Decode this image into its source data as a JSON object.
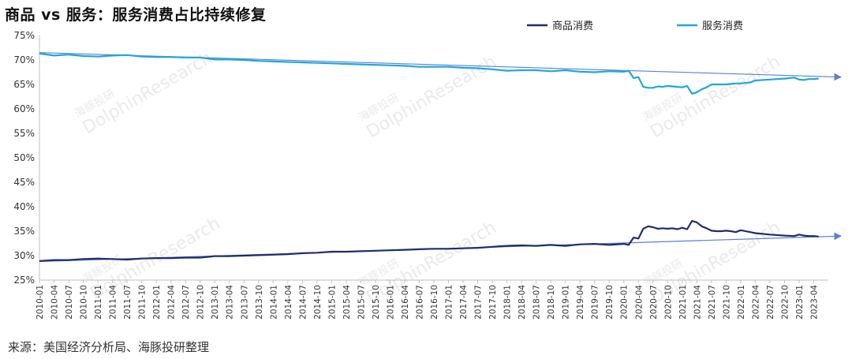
{
  "chart_data": {
    "type": "line",
    "title": "商品 vs 服务：服务消费占比持续修复",
    "source": "来源：美国经济分析局、海豚投研整理",
    "watermark": [
      "海豚投研",
      "DolphinResearch"
    ],
    "ylim": [
      25,
      75
    ],
    "yticks": [
      "25%",
      "30%",
      "35%",
      "40%",
      "45%",
      "50%",
      "55%",
      "60%",
      "65%",
      "70%",
      "75%"
    ],
    "xtick_labels": [
      "2010-01",
      "2010-04",
      "2010-07",
      "2010-10",
      "2011-01",
      "2011-04",
      "2011-07",
      "2011-10",
      "2012-01",
      "2012-04",
      "2012-07",
      "2012-10",
      "2013-01",
      "2013-04",
      "2013-07",
      "2013-10",
      "2014-01",
      "2014-04",
      "2014-07",
      "2014-10",
      "2015-01",
      "2015-04",
      "2015-07",
      "2015-10",
      "2016-01",
      "2016-04",
      "2016-07",
      "2016-10",
      "2017-01",
      "2017-04",
      "2017-07",
      "2017-10",
      "2018-01",
      "2018-04",
      "2018-07",
      "2018-10",
      "2019-01",
      "2019-04",
      "2019-07",
      "2019-10",
      "2020-01",
      "2020-04",
      "2020-07",
      "2020-10",
      "2021-01",
      "2021-04",
      "2021-07",
      "2021-10",
      "2022-01",
      "2022-04",
      "2022-07",
      "2022-10",
      "2023-01",
      "2023-04"
    ],
    "legend_position": "top-right",
    "series": [
      {
        "name": "商品消费",
        "color": "#1f2d6b",
        "points": [
          [
            "2010-01",
            28.9
          ],
          [
            "2010-04",
            29.1
          ],
          [
            "2010-07",
            29.1
          ],
          [
            "2010-10",
            29.3
          ],
          [
            "2011-01",
            29.4
          ],
          [
            "2011-04",
            29.3
          ],
          [
            "2011-07",
            29.2
          ],
          [
            "2011-10",
            29.4
          ],
          [
            "2012-01",
            29.5
          ],
          [
            "2012-04",
            29.5
          ],
          [
            "2012-07",
            29.6
          ],
          [
            "2012-10",
            29.6
          ],
          [
            "2013-01",
            29.9
          ],
          [
            "2013-04",
            29.9
          ],
          [
            "2013-07",
            30.0
          ],
          [
            "2013-10",
            30.1
          ],
          [
            "2014-01",
            30.2
          ],
          [
            "2014-04",
            30.3
          ],
          [
            "2014-07",
            30.5
          ],
          [
            "2014-10",
            30.6
          ],
          [
            "2015-01",
            30.8
          ],
          [
            "2015-04",
            30.8
          ],
          [
            "2015-07",
            30.9
          ],
          [
            "2015-10",
            31.0
          ],
          [
            "2016-01",
            31.1
          ],
          [
            "2016-04",
            31.2
          ],
          [
            "2016-07",
            31.3
          ],
          [
            "2016-10",
            31.4
          ],
          [
            "2017-01",
            31.4
          ],
          [
            "2017-04",
            31.5
          ],
          [
            "2017-07",
            31.6
          ],
          [
            "2017-10",
            31.8
          ],
          [
            "2018-01",
            32.0
          ],
          [
            "2018-04",
            32.1
          ],
          [
            "2018-07",
            32.0
          ],
          [
            "2018-10",
            32.2
          ],
          [
            "2019-01",
            32.0
          ],
          [
            "2019-04",
            32.3
          ],
          [
            "2019-07",
            32.4
          ],
          [
            "2019-10",
            32.2
          ],
          [
            "2020-01",
            32.4
          ],
          [
            "2020-02",
            32.2
          ],
          [
            "2020-03",
            33.7
          ],
          [
            "2020-04",
            33.5
          ],
          [
            "2020-05",
            35.5
          ],
          [
            "2020-06",
            36.0
          ],
          [
            "2020-07",
            35.8
          ],
          [
            "2020-08",
            35.5
          ],
          [
            "2020-09",
            35.6
          ],
          [
            "2020-10",
            35.5
          ],
          [
            "2020-11",
            35.6
          ],
          [
            "2020-12",
            35.4
          ],
          [
            "2021-01",
            35.7
          ],
          [
            "2021-02",
            35.4
          ],
          [
            "2021-03",
            37.1
          ],
          [
            "2021-04",
            36.8
          ],
          [
            "2021-05",
            36.0
          ],
          [
            "2021-06",
            35.6
          ],
          [
            "2021-07",
            35.1
          ],
          [
            "2021-08",
            35.0
          ],
          [
            "2021-09",
            35.0
          ],
          [
            "2021-10",
            35.1
          ],
          [
            "2021-11",
            35.0
          ],
          [
            "2021-12",
            34.8
          ],
          [
            "2022-01",
            35.2
          ],
          [
            "2022-03",
            34.8
          ],
          [
            "2022-04",
            34.6
          ],
          [
            "2022-07",
            34.3
          ],
          [
            "2022-10",
            34.1
          ],
          [
            "2022-12",
            34.0
          ],
          [
            "2023-01",
            34.3
          ],
          [
            "2023-02",
            34.1
          ],
          [
            "2023-03",
            34.0
          ],
          [
            "2023-04",
            34.0
          ],
          [
            "2023-05",
            33.9
          ]
        ]
      },
      {
        "name": "服务消费",
        "color": "#1ea7e1",
        "points": [
          [
            "2010-01",
            71.3
          ],
          [
            "2010-04",
            70.9
          ],
          [
            "2010-07",
            71.1
          ],
          [
            "2010-10",
            70.8
          ],
          [
            "2011-01",
            70.7
          ],
          [
            "2011-04",
            70.9
          ],
          [
            "2011-07",
            71.0
          ],
          [
            "2011-10",
            70.7
          ],
          [
            "2012-01",
            70.6
          ],
          [
            "2012-04",
            70.6
          ],
          [
            "2012-07",
            70.5
          ],
          [
            "2012-10",
            70.5
          ],
          [
            "2013-01",
            70.1
          ],
          [
            "2013-04",
            70.1
          ],
          [
            "2013-07",
            70.0
          ],
          [
            "2013-10",
            69.8
          ],
          [
            "2014-01",
            69.7
          ],
          [
            "2014-04",
            69.6
          ],
          [
            "2014-07",
            69.5
          ],
          [
            "2014-10",
            69.4
          ],
          [
            "2015-01",
            69.3
          ],
          [
            "2015-04",
            69.2
          ],
          [
            "2015-07",
            69.1
          ],
          [
            "2015-10",
            69.0
          ],
          [
            "2016-01",
            68.9
          ],
          [
            "2016-04",
            68.8
          ],
          [
            "2016-07",
            68.6
          ],
          [
            "2016-10",
            68.6
          ],
          [
            "2017-01",
            68.6
          ],
          [
            "2017-04",
            68.4
          ],
          [
            "2017-07",
            68.3
          ],
          [
            "2017-10",
            68.1
          ],
          [
            "2018-01",
            67.8
          ],
          [
            "2018-04",
            67.9
          ],
          [
            "2018-07",
            67.9
          ],
          [
            "2018-10",
            67.7
          ],
          [
            "2019-01",
            67.9
          ],
          [
            "2019-04",
            67.6
          ],
          [
            "2019-07",
            67.5
          ],
          [
            "2019-10",
            67.7
          ],
          [
            "2020-01",
            67.6
          ],
          [
            "2020-02",
            67.8
          ],
          [
            "2020-03",
            66.3
          ],
          [
            "2020-04",
            66.5
          ],
          [
            "2020-05",
            64.5
          ],
          [
            "2020-06",
            64.3
          ],
          [
            "2020-07",
            64.3
          ],
          [
            "2020-08",
            64.6
          ],
          [
            "2020-09",
            64.5
          ],
          [
            "2020-10",
            64.7
          ],
          [
            "2020-11",
            64.6
          ],
          [
            "2020-12",
            64.5
          ],
          [
            "2021-01",
            64.4
          ],
          [
            "2021-02",
            64.7
          ],
          [
            "2021-03",
            63.1
          ],
          [
            "2021-04",
            63.4
          ],
          [
            "2021-05",
            64.0
          ],
          [
            "2021-06",
            64.4
          ],
          [
            "2021-07",
            65.0
          ],
          [
            "2021-08",
            65.0
          ],
          [
            "2021-09",
            65.0
          ],
          [
            "2021-10",
            65.0
          ],
          [
            "2021-11",
            65.1
          ],
          [
            "2021-12",
            65.2
          ],
          [
            "2022-01",
            65.2
          ],
          [
            "2022-03",
            65.4
          ],
          [
            "2022-04",
            65.8
          ],
          [
            "2022-07",
            66.0
          ],
          [
            "2022-10",
            66.2
          ],
          [
            "2022-12",
            66.4
          ],
          [
            "2023-01",
            66.0
          ],
          [
            "2023-02",
            65.9
          ],
          [
            "2023-03",
            66.1
          ],
          [
            "2023-04",
            66.1
          ],
          [
            "2023-05",
            66.2
          ]
        ]
      }
    ],
    "trend_lines": [
      {
        "from": [
          "2010-01",
          71.5
        ],
        "to": [
          "2023-07",
          66.5
        ],
        "color": "#5b7fd6"
      },
      {
        "from": [
          "2010-01",
          28.8
        ],
        "to": [
          "2023-07",
          34.0
        ],
        "color": "#5b7fd6"
      }
    ]
  }
}
